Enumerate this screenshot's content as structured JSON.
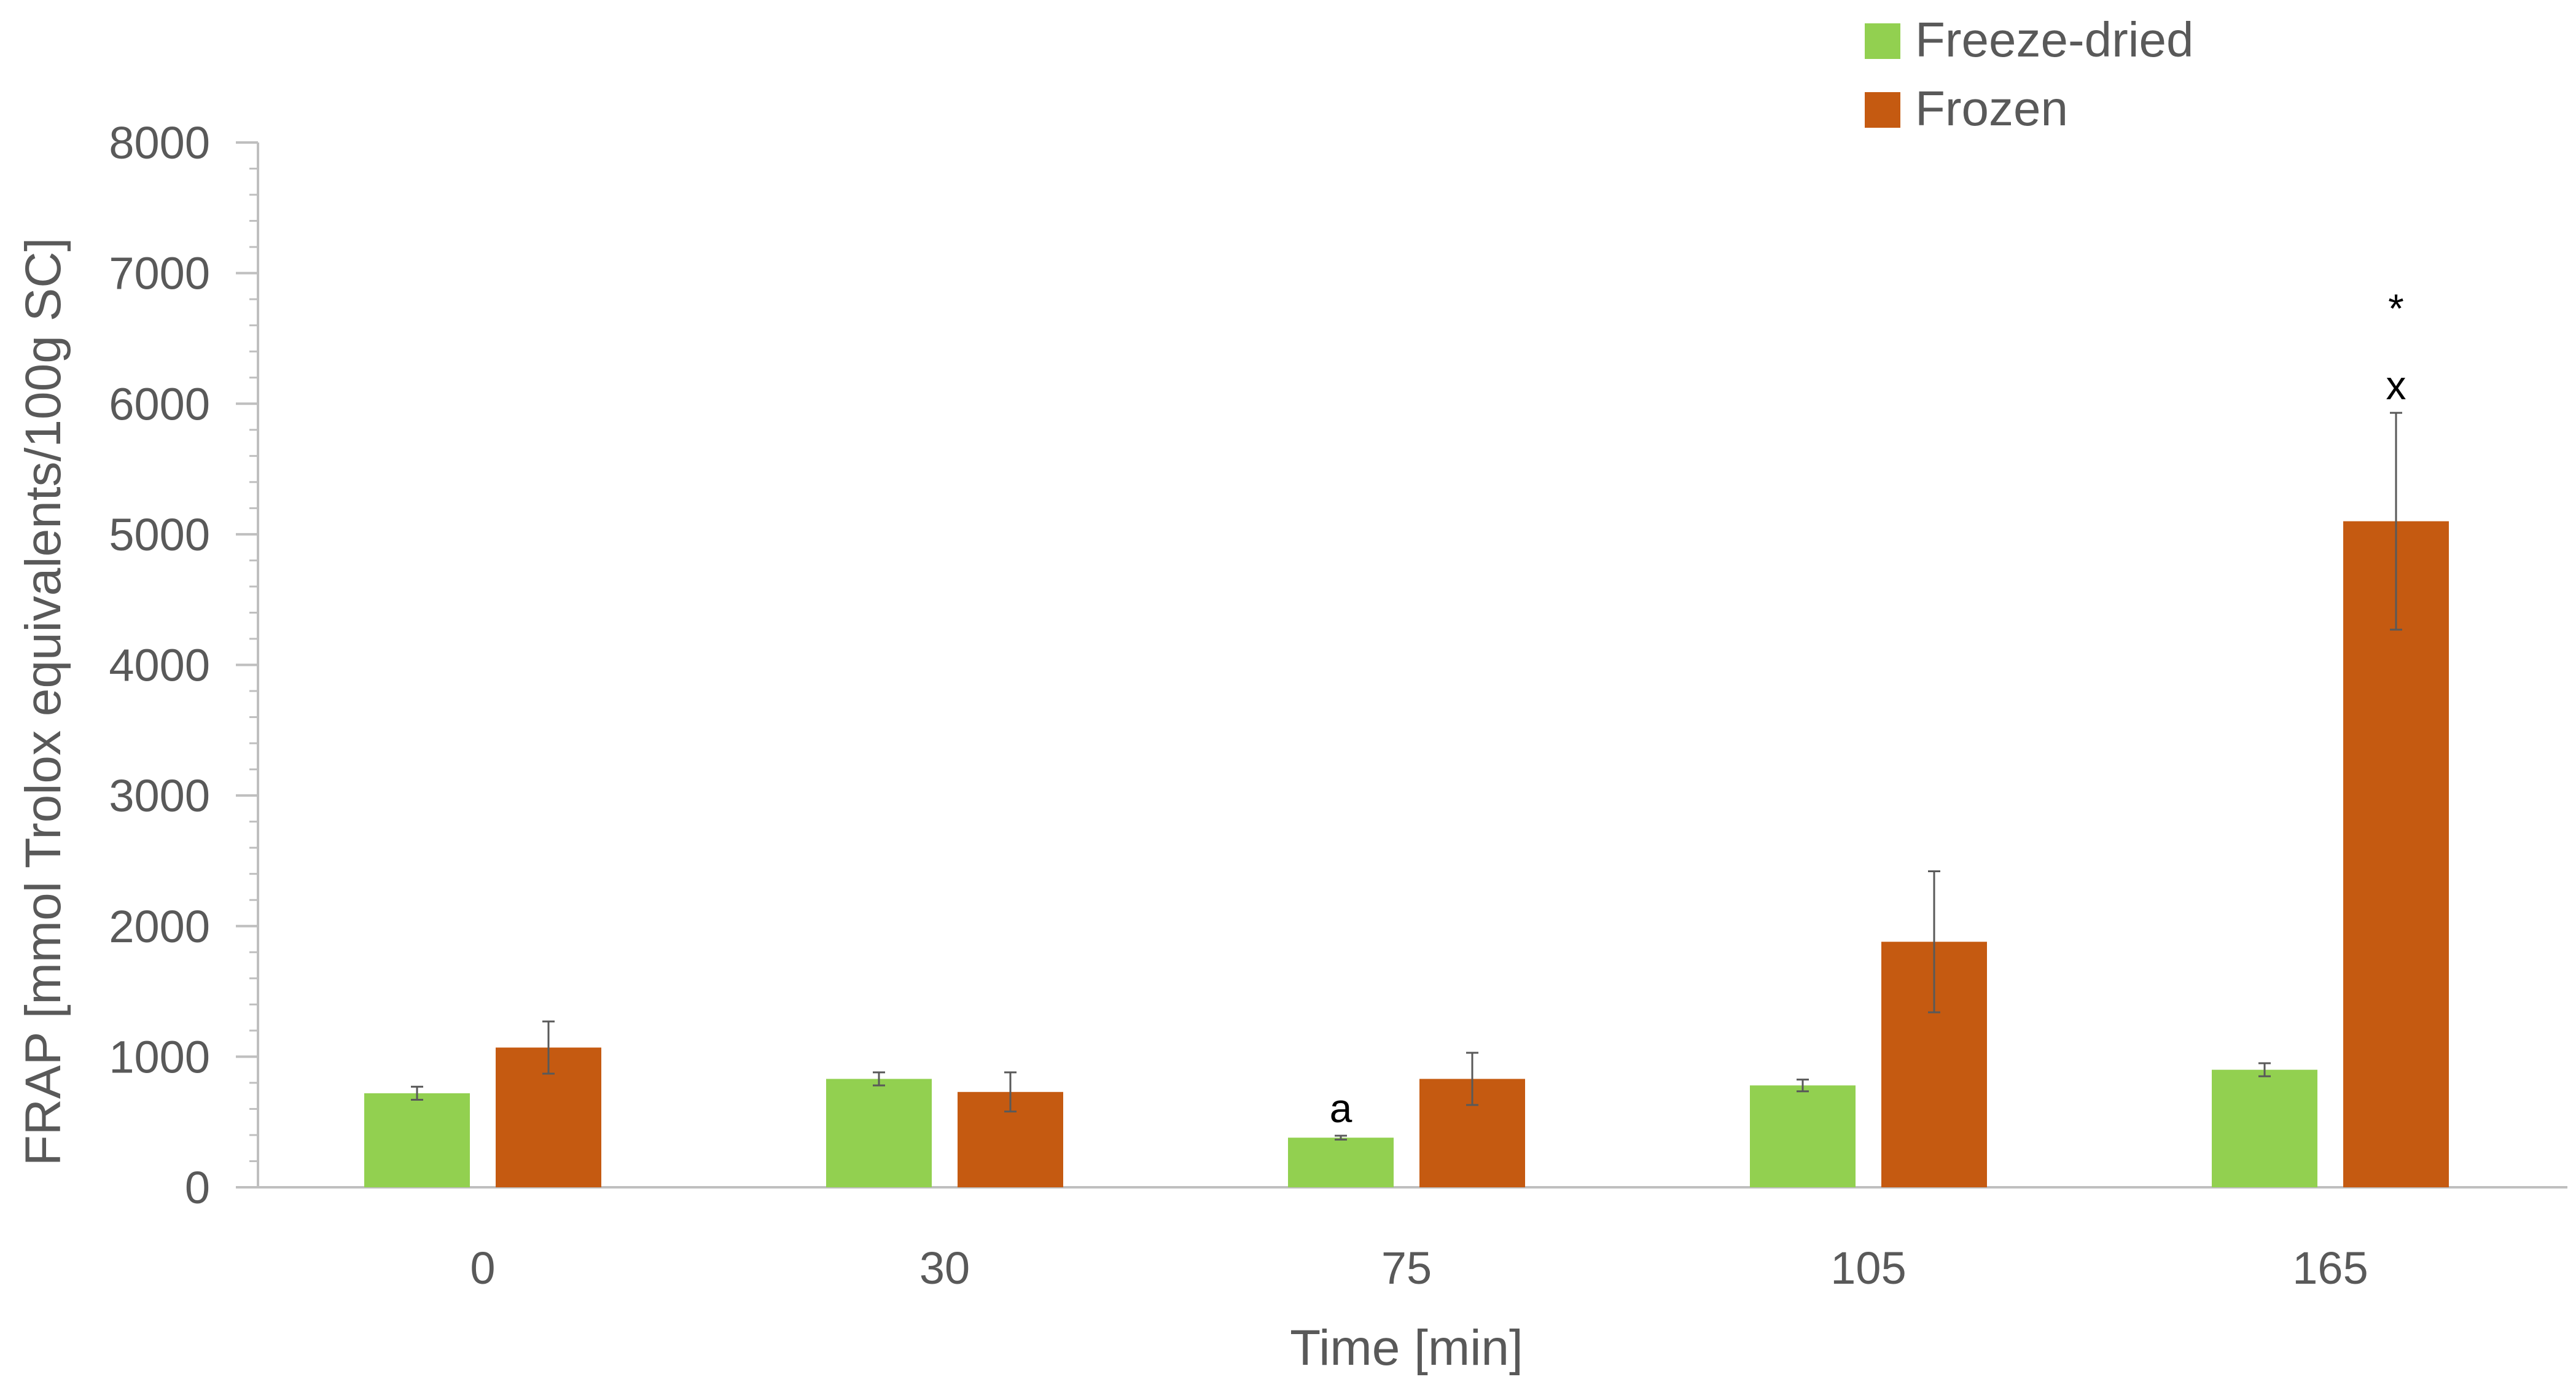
{
  "chart_data": {
    "type": "bar",
    "title": "",
    "xlabel": "Time [min]",
    "ylabel": "FRAP [mmol Trolox equivalents/100g SC]",
    "categories": [
      "0",
      "30",
      "75",
      "105",
      "165"
    ],
    "ylim": [
      0,
      8000
    ],
    "yticks": [
      0,
      1000,
      2000,
      3000,
      4000,
      5000,
      6000,
      7000,
      8000
    ],
    "grid": false,
    "legend_position": "top-right",
    "series": [
      {
        "name": "Freeze-dried",
        "color": "#92d050",
        "values": [
          720,
          830,
          380,
          780,
          900
        ],
        "errors": [
          50,
          50,
          15,
          45,
          50
        ]
      },
      {
        "name": "Frozen",
        "color": "#c55a11",
        "values": [
          1070,
          730,
          830,
          1880,
          5100
        ],
        "errors": [
          200,
          150,
          200,
          540,
          830
        ]
      }
    ],
    "annotations": [
      {
        "series": 0,
        "category": "75",
        "text": "a"
      },
      {
        "series": 1,
        "category": "165",
        "text": "x"
      },
      {
        "series": 1,
        "category": "165",
        "text": "*"
      }
    ]
  }
}
